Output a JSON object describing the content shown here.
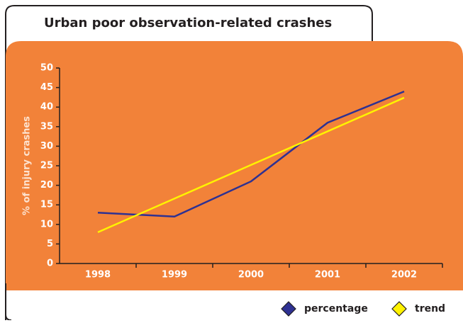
{
  "chart_data": {
    "type": "line",
    "title": "Urban poor observation-related crashes",
    "y_label": "% of injury crashes",
    "categories": [
      "1998",
      "1999",
      "2000",
      "2001",
      "2002"
    ],
    "series": [
      {
        "name": "percentage",
        "color": "#2e3192",
        "values": [
          13,
          12,
          21,
          36,
          44
        ]
      },
      {
        "name": "trend",
        "color": "#fff200",
        "values": [
          8,
          16.6,
          25.2,
          33.8,
          42.4
        ]
      }
    ],
    "ylim": [
      0,
      50
    ],
    "yticks": [
      0,
      5,
      10,
      15,
      20,
      25,
      30,
      35,
      40,
      45,
      50
    ],
    "grid": false,
    "legend": "bottom-right"
  }
}
